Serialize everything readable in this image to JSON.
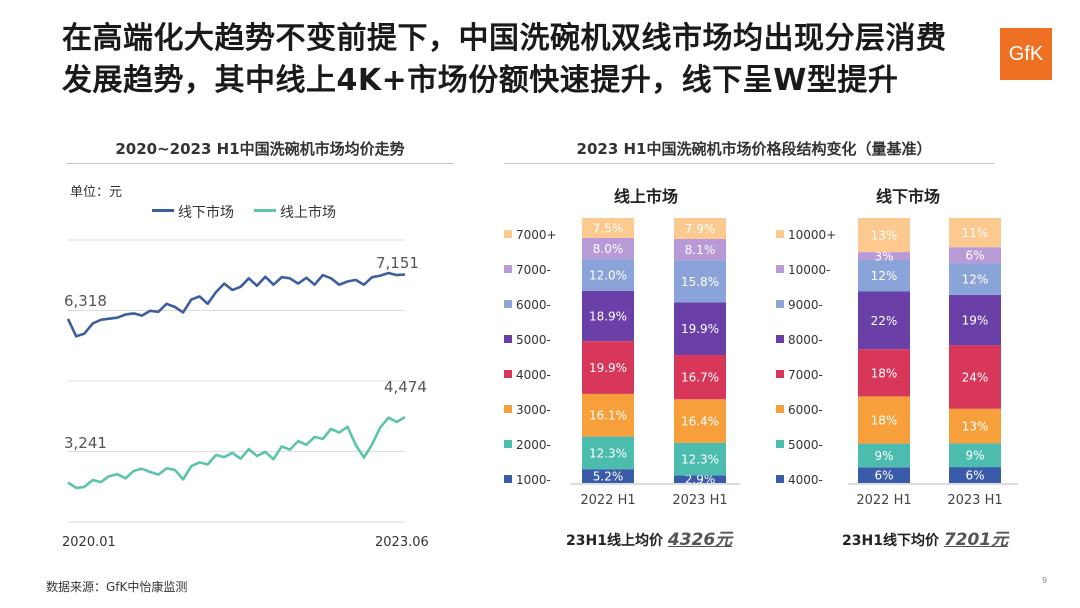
{
  "title": {
    "line1": "在高端化大趋势不变前提下，中国洗碗机双线市场均出现分层消费",
    "line2": "发展趋势，其中线上4K+市场份额快速提升，线下呈W型提升"
  },
  "logo_text": "GfK",
  "left_chart": {
    "title": "2020~2023 H1中国洗碗机市场均价走势",
    "unit": "单位：元",
    "legend": [
      "线下市场",
      "线上市场"
    ],
    "colors": {
      "offline": "#3d5f9e",
      "online": "#5cc4a8"
    },
    "x_start": "2020.01",
    "x_end": "2023.06",
    "label_offline_end": "7,151",
    "label_offline_start": "6,318",
    "label_online_end": "4,474",
    "label_online_start": "3,241"
  },
  "right_title": "2023 H1中国洗碗机市场价格段结构变化（量基准）",
  "online_panel": {
    "title": "线上市场",
    "avg_label": "23H1线上均价",
    "avg_value": "4326元",
    "categories": [
      "2022 H1",
      "2023 H1"
    ],
    "legend": [
      "7000+",
      "7000-",
      "6000-",
      "5000-",
      "4000-",
      "3000-",
      "2000-",
      "1000-"
    ]
  },
  "offline_panel": {
    "title": "线下市场",
    "avg_label": "23H1线下均价",
    "avg_value": "7201元",
    "categories": [
      "2022 H1",
      "2023 H1"
    ],
    "legend": [
      "10000+",
      "10000-",
      "9000-",
      "8000-",
      "7000-",
      "6000-",
      "5000-",
      "4000-"
    ]
  },
  "source": "数据来源：GfK中怡康监测",
  "page_number": "9",
  "chart_data": [
    {
      "type": "line",
      "title": "2020~2023 H1中国洗碗机市场均价走势",
      "ylabel": "单位：元",
      "x_range": [
        "2020.01",
        "2023.06"
      ],
      "series": [
        {
          "name": "线下市场",
          "values": [
            6318,
            5990,
            6040,
            6230,
            6300,
            6320,
            6340,
            6400,
            6420,
            6380,
            6470,
            6450,
            6600,
            6540,
            6440,
            6680,
            6740,
            6600,
            6820,
            6980,
            6860,
            6920,
            7080,
            6940,
            7110,
            6960,
            7100,
            7080,
            6980,
            7090,
            6960,
            7140,
            7080,
            6960,
            7020,
            7050,
            6960,
            7100,
            7130,
            7180,
            7140,
            7151
          ]
        },
        {
          "name": "线上市场",
          "values": [
            3241,
            3140,
            3160,
            3290,
            3250,
            3360,
            3400,
            3320,
            3460,
            3500,
            3440,
            3390,
            3510,
            3480,
            3300,
            3550,
            3620,
            3580,
            3760,
            3720,
            3800,
            3690,
            3870,
            3740,
            3820,
            3680,
            3920,
            3860,
            4020,
            3950,
            4100,
            4060,
            4250,
            4180,
            4290,
            3950,
            3710,
            3960,
            4280,
            4460,
            4380,
            4474
          ]
        }
      ]
    },
    {
      "type": "bar",
      "title": "线上市场",
      "stacked": true,
      "categories": [
        "2022 H1",
        "2023 H1"
      ],
      "series": [
        {
          "name": "1000-",
          "values": [
            5.2,
            2.9
          ],
          "color": "#3a5ba9"
        },
        {
          "name": "2000-",
          "values": [
            12.3,
            12.3
          ],
          "color": "#4cbcae"
        },
        {
          "name": "3000-",
          "values": [
            16.1,
            16.4
          ],
          "color": "#f7a03b"
        },
        {
          "name": "4000-",
          "values": [
            19.9,
            16.7
          ],
          "color": "#d9375a"
        },
        {
          "name": "5000-",
          "values": [
            18.9,
            19.9
          ],
          "color": "#6b3fa8"
        },
        {
          "name": "6000-",
          "values": [
            12.0,
            15.8
          ],
          "color": "#8aa3d8"
        },
        {
          "name": "7000-",
          "values": [
            8.0,
            8.1
          ],
          "color": "#b89ad6"
        },
        {
          "name": "7000+",
          "values": [
            7.5,
            7.9
          ],
          "color": "#fcc98f"
        }
      ],
      "labels": [
        [
          "5.2%",
          "12.3%",
          "16.1%",
          "19.9%",
          "18.9%",
          "12.0%",
          "8.0%",
          "7.5%"
        ],
        [
          "2.9%",
          "12.3%",
          "16.4%",
          "16.7%",
          "19.9%",
          "15.8%",
          "8.1%",
          "7.9%"
        ]
      ]
    },
    {
      "type": "bar",
      "title": "线下市场",
      "stacked": true,
      "categories": [
        "2022 H1",
        "2023 H1"
      ],
      "series": [
        {
          "name": "4000-",
          "values": [
            6,
            6
          ],
          "color": "#3a5ba9"
        },
        {
          "name": "5000-",
          "values": [
            9,
            9
          ],
          "color": "#4cbcae"
        },
        {
          "name": "6000-",
          "values": [
            18,
            13
          ],
          "color": "#f7a03b"
        },
        {
          "name": "7000-",
          "values": [
            18,
            24
          ],
          "color": "#d9375a"
        },
        {
          "name": "8000-",
          "values": [
            22,
            19
          ],
          "color": "#6b3fa8"
        },
        {
          "name": "9000-",
          "values": [
            12,
            12
          ],
          "color": "#8aa3d8"
        },
        {
          "name": "10000-",
          "values": [
            3,
            6
          ],
          "color": "#b89ad6"
        },
        {
          "name": "10000+",
          "values": [
            13,
            11
          ],
          "color": "#fcc98f"
        }
      ],
      "labels": [
        [
          "6%",
          "9%",
          "18%",
          "18%",
          "22%",
          "12%",
          "3%",
          "13%"
        ],
        [
          "6%",
          "9%",
          "13%",
          "24%",
          "19%",
          "12%",
          "6%",
          "11%"
        ]
      ]
    }
  ]
}
